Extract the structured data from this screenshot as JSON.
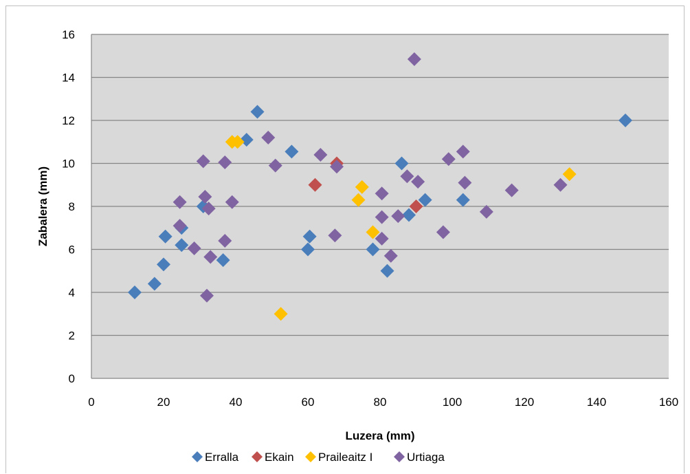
{
  "chart_data": {
    "type": "scatter",
    "title": "",
    "xlabel": "Luzera (mm)",
    "ylabel": "Zabalera (mm)",
    "xlim": [
      0,
      160
    ],
    "ylim": [
      0,
      16
    ],
    "xticks": [
      0,
      20,
      40,
      60,
      80,
      100,
      120,
      140,
      160
    ],
    "yticks": [
      0,
      2,
      4,
      6,
      8,
      10,
      12,
      14,
      16
    ],
    "grid": "horizontal",
    "legend": "bottom",
    "plot_background": "#d9d9d9",
    "series": [
      {
        "name": "Erralla",
        "color": "#4a7ebb",
        "marker": "diamond",
        "points": [
          [
            12,
            4.0
          ],
          [
            17.5,
            4.4
          ],
          [
            20,
            5.3
          ],
          [
            20.5,
            6.6
          ],
          [
            25,
            6.2
          ],
          [
            25,
            7.0
          ],
          [
            31,
            8.0
          ],
          [
            36.5,
            5.5
          ],
          [
            43,
            11.1
          ],
          [
            46,
            12.4
          ],
          [
            55.5,
            10.55
          ],
          [
            60,
            6.0
          ],
          [
            60.5,
            6.6
          ],
          [
            78,
            6.0
          ],
          [
            82,
            5.0
          ],
          [
            86,
            10.0
          ],
          [
            88,
            7.6
          ],
          [
            92.5,
            8.3
          ],
          [
            103,
            8.3
          ],
          [
            148,
            12.0
          ]
        ]
      },
      {
        "name": "Ekain",
        "color": "#c0504d",
        "marker": "diamond",
        "points": [
          [
            62,
            9.0
          ],
          [
            68,
            10.0
          ],
          [
            90,
            8.0
          ]
        ]
      },
      {
        "name": "Praileaitz I",
        "color": "#ffc000",
        "marker": "diamond",
        "points": [
          [
            39,
            11.0
          ],
          [
            40.5,
            11.0
          ],
          [
            52.5,
            3.0
          ],
          [
            74,
            8.3
          ],
          [
            75,
            8.9
          ],
          [
            78,
            6.8
          ],
          [
            132.5,
            9.5
          ]
        ]
      },
      {
        "name": "Urtiaga",
        "color": "#8064a2",
        "marker": "diamond",
        "points": [
          [
            24.5,
            8.2
          ],
          [
            24.5,
            7.1
          ],
          [
            28.5,
            6.05
          ],
          [
            31,
            10.1
          ],
          [
            31.5,
            8.45
          ],
          [
            32,
            3.85
          ],
          [
            32.5,
            7.9
          ],
          [
            33,
            5.65
          ],
          [
            37,
            10.05
          ],
          [
            37,
            6.4
          ],
          [
            39,
            8.2
          ],
          [
            49,
            11.2
          ],
          [
            51,
            9.9
          ],
          [
            63.5,
            10.4
          ],
          [
            67.5,
            6.65
          ],
          [
            68,
            9.85
          ],
          [
            80.5,
            8.6
          ],
          [
            80.5,
            7.5
          ],
          [
            80.5,
            6.5
          ],
          [
            83,
            5.7
          ],
          [
            85,
            7.55
          ],
          [
            87.5,
            9.4
          ],
          [
            89.5,
            14.85
          ],
          [
            90.5,
            9.15
          ],
          [
            97.5,
            6.8
          ],
          [
            99,
            10.2
          ],
          [
            103,
            10.55
          ],
          [
            103.5,
            9.1
          ],
          [
            109.5,
            7.75
          ],
          [
            116.5,
            8.75
          ],
          [
            130,
            9.0
          ]
        ]
      }
    ]
  }
}
